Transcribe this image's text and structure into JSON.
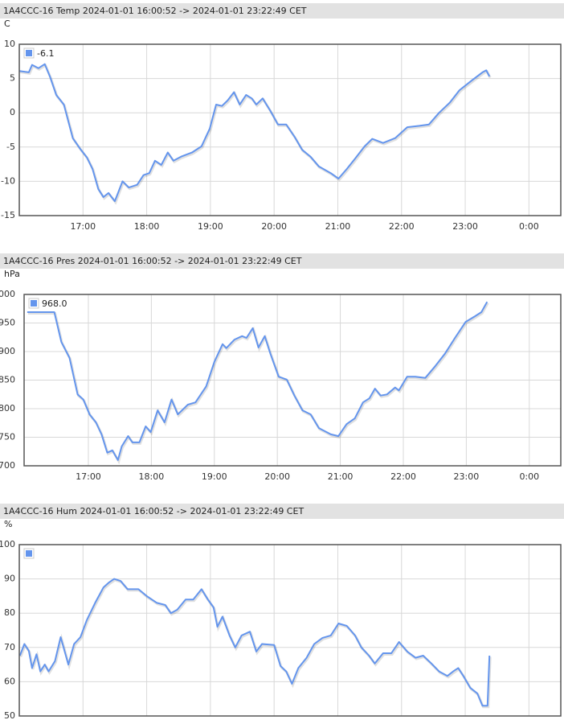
{
  "chart_data": [
    {
      "type": "line",
      "title": "1A4CCC-16 Temp 2024-01-01 16:00:52 -> 2024-01-01 23:22:49 CET",
      "y_label": "C",
      "x": [
        16.0,
        16.15,
        16.2,
        16.3,
        16.4,
        16.48,
        16.58,
        16.7,
        16.84,
        16.96,
        17.06,
        17.15,
        17.24,
        17.32,
        17.4,
        17.5,
        17.62,
        17.72,
        17.85,
        17.95,
        18.04,
        18.13,
        18.23,
        18.33,
        18.42,
        18.54,
        18.71,
        18.86,
        18.99,
        19.09,
        19.18,
        19.27,
        19.37,
        19.46,
        19.56,
        19.65,
        19.72,
        19.82,
        19.94,
        20.06,
        20.19,
        20.32,
        20.44,
        20.57,
        20.7,
        20.89,
        21.01,
        21.14,
        21.27,
        21.42,
        21.54,
        21.71,
        21.9,
        22.09,
        22.28,
        22.43,
        22.59,
        22.76,
        22.91,
        23.1,
        23.27,
        23.33,
        23.38
      ],
      "series": [
        {
          "name": "-6.1",
          "color": "#6495ed",
          "values": [
            6.1,
            5.9,
            7,
            6.5,
            7.1,
            5.3,
            2.6,
            1.2,
            -3.7,
            -5.3,
            -6.5,
            -8.2,
            -11.1,
            -12.3,
            -11.7,
            -12.9,
            -10,
            -10.9,
            -10.5,
            -9.1,
            -8.8,
            -7,
            -7.6,
            -5.8,
            -7,
            -6.4,
            -5.8,
            -4.9,
            -2.3,
            1.2,
            1,
            1.8,
            3,
            1.2,
            2.6,
            2.1,
            1.2,
            2.1,
            0.3,
            -1.7,
            -1.7,
            -3.5,
            -5.4,
            -6.4,
            -7.8,
            -8.8,
            -9.6,
            -8.2,
            -6.7,
            -4.9,
            -3.8,
            -4.4,
            -3.7,
            -2.1,
            -1.9,
            -1.7,
            0,
            1.5,
            3.3,
            4.7,
            5.9,
            6.2,
            5.3
          ]
        }
      ],
      "xlim": [
        16.0,
        24.5
      ],
      "xticks": [
        {
          "value": 17,
          "label": "17:00"
        },
        {
          "value": 18,
          "label": "18:00"
        },
        {
          "value": 19,
          "label": "19:00"
        },
        {
          "value": 20,
          "label": "20:00"
        },
        {
          "value": 21,
          "label": "21:00"
        },
        {
          "value": 22,
          "label": "22:00"
        },
        {
          "value": 23,
          "label": "23:00"
        },
        {
          "value": 24,
          "label": "0:00"
        }
      ],
      "ylim": [
        -15,
        10
      ],
      "yticks": [
        -15,
        -10,
        -5,
        0,
        5,
        10
      ],
      "grid": true
    },
    {
      "type": "line",
      "title": "1A4CCC-16 Pres 2024-01-01 16:00:52 -> 2024-01-01 23:22:49 CET",
      "y_label": "hPa",
      "x": [
        16.03,
        16.46,
        16.57,
        16.7,
        16.83,
        16.92,
        17.02,
        17.12,
        17.21,
        17.3,
        17.38,
        17.47,
        17.53,
        17.63,
        17.7,
        17.81,
        17.91,
        17.99,
        18.1,
        18.21,
        18.32,
        18.42,
        18.58,
        18.7,
        18.87,
        19.0,
        19.13,
        19.19,
        19.32,
        19.44,
        19.51,
        19.61,
        19.7,
        19.8,
        19.89,
        20.02,
        20.15,
        20.27,
        20.4,
        20.53,
        20.66,
        20.85,
        20.97,
        21.1,
        21.23,
        21.36,
        21.46,
        21.55,
        21.64,
        21.74,
        21.87,
        21.93,
        22.06,
        22.19,
        22.35,
        22.51,
        22.66,
        22.82,
        22.99,
        23.14,
        23.24,
        23.33
      ],
      "series": [
        {
          "name": "968.0",
          "color": "#6495ed",
          "values": [
            969,
            969,
            917,
            889,
            825,
            816,
            790,
            776,
            755,
            723,
            727,
            710,
            734,
            752,
            741,
            741,
            769,
            759,
            797,
            776,
            816,
            790,
            807,
            811,
            839,
            882,
            913,
            906,
            921,
            927,
            924,
            941,
            907,
            927,
            896,
            856,
            851,
            823,
            797,
            790,
            766,
            755,
            752,
            773,
            783,
            811,
            818,
            835,
            823,
            825,
            837,
            832,
            856,
            856,
            854,
            875,
            896,
            924,
            952,
            962,
            969,
            987
          ]
        }
      ],
      "xlim": [
        15.98,
        24.5
      ],
      "xticks": [
        {
          "value": 17,
          "label": "17:00"
        },
        {
          "value": 18,
          "label": "18:00"
        },
        {
          "value": 19,
          "label": "19:00"
        },
        {
          "value": 20,
          "label": "20:00"
        },
        {
          "value": 21,
          "label": "21:00"
        },
        {
          "value": 22,
          "label": "22:00"
        },
        {
          "value": 23,
          "label": "23:00"
        },
        {
          "value": 24,
          "label": "0:00"
        }
      ],
      "ylim": [
        700,
        1000
      ],
      "yticks": [
        700,
        750,
        800,
        850,
        900,
        950,
        1000
      ],
      "grid": true
    },
    {
      "type": "line",
      "title": "1A4CCC-16 Hum 2024-01-01 16:00:52 -> 2024-01-01 23:22:49 CET",
      "y_label": "%",
      "x": [
        16.01,
        16.08,
        16.15,
        16.2,
        16.27,
        16.33,
        16.4,
        16.46,
        16.56,
        16.65,
        16.77,
        16.86,
        16.96,
        17.06,
        17.19,
        17.32,
        17.41,
        17.49,
        17.59,
        17.7,
        17.87,
        18.0,
        18.16,
        18.29,
        18.38,
        18.48,
        18.61,
        18.73,
        18.86,
        18.96,
        19.05,
        19.11,
        19.19,
        19.3,
        19.39,
        19.49,
        19.62,
        19.72,
        19.81,
        20.0,
        20.1,
        20.19,
        20.28,
        20.38,
        20.51,
        20.63,
        20.76,
        20.89,
        21.01,
        21.14,
        21.27,
        21.37,
        21.49,
        21.58,
        21.71,
        21.84,
        21.96,
        22.09,
        22.22,
        22.34,
        22.47,
        22.59,
        22.72,
        22.81,
        22.89,
        22.97,
        23.08,
        23.19,
        23.27,
        23.35,
        23.38
      ],
      "series": [
        {
          "color": "#6495ed",
          "values": [
            67.6,
            71,
            69,
            64,
            68,
            63,
            65,
            63,
            66,
            73,
            65,
            71,
            73,
            78,
            83,
            87.5,
            89,
            90,
            89.4,
            87,
            87,
            85,
            83,
            82.4,
            80,
            81,
            84,
            84,
            87,
            84,
            81.7,
            76,
            79,
            73.5,
            70,
            73.5,
            74.6,
            68.8,
            71,
            70.7,
            64.6,
            63,
            59.4,
            64,
            67,
            71,
            72.8,
            73.5,
            77,
            76.3,
            73.5,
            70,
            67.6,
            65.3,
            68.3,
            68.3,
            71.6,
            68.8,
            67,
            67.6,
            65.3,
            63,
            61.7,
            63,
            64,
            61.7,
            58.2,
            56.6,
            53,
            53,
            67.6
          ]
        }
      ],
      "xlim": [
        16.0,
        24.5
      ],
      "xticks": [
        17,
        18,
        19,
        20,
        21,
        22,
        23,
        24
      ],
      "ylim": [
        50,
        100
      ],
      "yticks": [
        50,
        60,
        70,
        80,
        90,
        100
      ],
      "grid": true
    }
  ]
}
